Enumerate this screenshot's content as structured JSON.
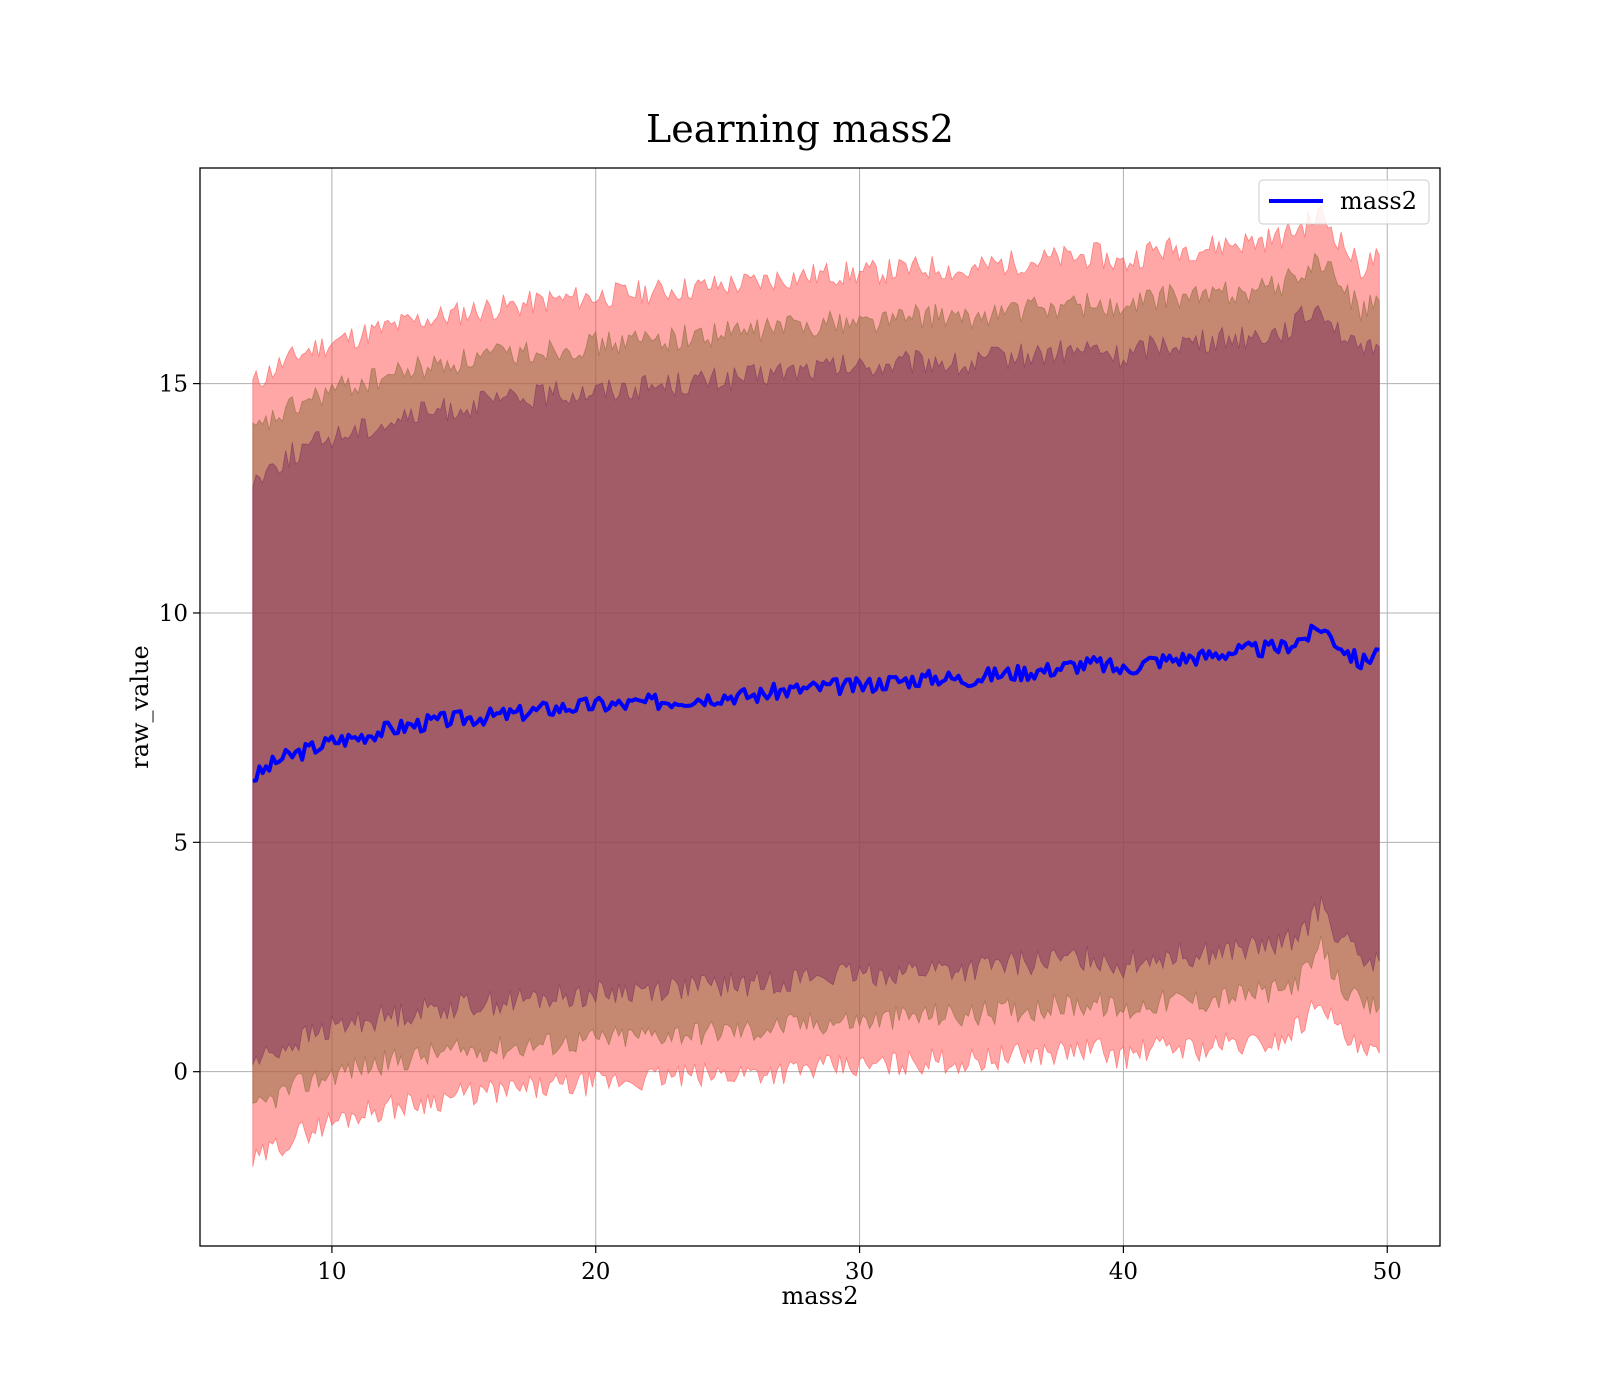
{
  "chart_data": {
    "type": "line",
    "title": "Learning mass2",
    "xlabel": "mass2",
    "ylabel": "raw_value",
    "xlim": [
      5,
      52
    ],
    "ylim": [
      -3.8,
      19.7
    ],
    "xticks": [
      10,
      20,
      30,
      40,
      50
    ],
    "xtick_labels": [
      "10",
      "20",
      "30",
      "40",
      "50"
    ],
    "yticks": [
      0,
      5,
      10,
      15
    ],
    "ytick_labels": [
      "0",
      "5",
      "10",
      "15"
    ],
    "grid": true,
    "legend": {
      "placement": "top-right",
      "entries": [
        "mass2"
      ]
    },
    "x": [
      7.0,
      8.0,
      9.0,
      10.0,
      11.0,
      12.0,
      13.0,
      14.0,
      15.0,
      16.0,
      17.0,
      18.0,
      19.0,
      20.0,
      21.0,
      22.0,
      23.0,
      24.0,
      25.0,
      26.0,
      27.0,
      28.0,
      29.0,
      30.0,
      31.0,
      32.0,
      33.0,
      34.0,
      35.0,
      36.0,
      37.0,
      38.0,
      39.0,
      40.0,
      41.0,
      42.0,
      43.0,
      44.0,
      45.0,
      46.0,
      47.0,
      47.5,
      48.0,
      49.0,
      49.7
    ],
    "series": [
      {
        "name": "mass2",
        "color": "#0000ff",
        "values": [
          6.4,
          6.8,
          7.0,
          7.2,
          7.3,
          7.45,
          7.55,
          7.65,
          7.7,
          7.75,
          7.8,
          7.9,
          7.95,
          8.0,
          8.0,
          8.05,
          8.1,
          8.15,
          8.2,
          8.2,
          8.3,
          8.35,
          8.4,
          8.4,
          8.5,
          8.55,
          8.6,
          8.55,
          8.65,
          8.7,
          8.75,
          8.85,
          8.9,
          8.75,
          8.95,
          9.0,
          9.05,
          9.15,
          9.2,
          9.25,
          9.5,
          9.7,
          9.4,
          8.9,
          9.2
        ]
      }
    ],
    "bands": [
      {
        "level": "outer",
        "color": "#ff4d4d",
        "lower": [
          -2.0,
          -1.6,
          -1.3,
          -1.1,
          -0.9,
          -0.8,
          -0.7,
          -0.6,
          -0.5,
          -0.45,
          -0.4,
          -0.35,
          -0.3,
          -0.25,
          -0.2,
          -0.15,
          -0.1,
          -0.1,
          -0.05,
          0.0,
          0.0,
          0.05,
          0.1,
          0.1,
          0.15,
          0.2,
          0.25,
          0.2,
          0.3,
          0.35,
          0.4,
          0.45,
          0.5,
          0.3,
          0.5,
          0.55,
          0.5,
          0.6,
          0.6,
          0.7,
          1.2,
          1.7,
          1.0,
          0.4,
          0.4
        ],
        "upper": [
          15.0,
          15.4,
          15.7,
          15.9,
          16.05,
          16.2,
          16.35,
          16.45,
          16.55,
          16.65,
          16.7,
          16.8,
          16.85,
          16.9,
          16.95,
          17.0,
          17.05,
          17.1,
          17.15,
          17.2,
          17.3,
          17.35,
          17.4,
          17.4,
          17.45,
          17.5,
          17.55,
          17.4,
          17.6,
          17.65,
          17.7,
          17.75,
          17.8,
          17.6,
          17.9,
          17.95,
          17.95,
          18.05,
          18.1,
          18.2,
          18.5,
          18.7,
          18.3,
          17.5,
          17.8
        ]
      },
      {
        "level": "middle",
        "color": "#8c6a3a",
        "lower": [
          -0.9,
          -0.5,
          -0.25,
          -0.05,
          0.1,
          0.2,
          0.3,
          0.4,
          0.45,
          0.5,
          0.55,
          0.6,
          0.65,
          0.7,
          0.75,
          0.8,
          0.85,
          0.85,
          0.9,
          0.9,
          1.0,
          1.05,
          1.1,
          1.1,
          1.15,
          1.2,
          1.25,
          1.2,
          1.3,
          1.35,
          1.4,
          1.45,
          1.5,
          1.3,
          1.5,
          1.55,
          1.55,
          1.65,
          1.7,
          1.75,
          2.2,
          2.7,
          2.1,
          1.4,
          1.4
        ],
        "upper": [
          13.9,
          14.3,
          14.6,
          14.85,
          15.0,
          15.15,
          15.3,
          15.4,
          15.5,
          15.6,
          15.65,
          15.75,
          15.8,
          15.85,
          15.9,
          15.95,
          16.0,
          16.05,
          16.1,
          16.15,
          16.25,
          16.3,
          16.35,
          16.35,
          16.4,
          16.45,
          16.5,
          16.35,
          16.55,
          16.6,
          16.65,
          16.7,
          16.75,
          16.55,
          16.85,
          16.9,
          16.9,
          17.0,
          17.05,
          17.15,
          17.5,
          17.7,
          17.3,
          16.6,
          16.8
        ]
      },
      {
        "level": "inner",
        "color": "#7d3060",
        "lower": [
          0.2,
          0.5,
          0.75,
          0.95,
          1.1,
          1.2,
          1.3,
          1.4,
          1.45,
          1.5,
          1.55,
          1.6,
          1.65,
          1.7,
          1.75,
          1.8,
          1.85,
          1.85,
          1.9,
          1.9,
          2.0,
          2.05,
          2.1,
          2.1,
          2.15,
          2.2,
          2.25,
          2.2,
          2.3,
          2.35,
          2.4,
          2.45,
          2.5,
          2.3,
          2.5,
          2.55,
          2.55,
          2.65,
          2.7,
          2.75,
          3.2,
          3.6,
          3.1,
          2.4,
          2.4
        ],
        "upper": [
          12.9,
          13.3,
          13.6,
          13.85,
          14.0,
          14.15,
          14.3,
          14.4,
          14.5,
          14.6,
          14.65,
          14.75,
          14.8,
          14.85,
          14.9,
          14.95,
          15.0,
          15.05,
          15.1,
          15.15,
          15.25,
          15.3,
          15.35,
          15.35,
          15.4,
          15.45,
          15.5,
          15.35,
          15.55,
          15.6,
          15.65,
          15.7,
          15.75,
          15.55,
          15.85,
          15.9,
          15.9,
          16.0,
          16.05,
          16.15,
          16.5,
          16.7,
          16.3,
          15.6,
          15.8
        ]
      }
    ]
  }
}
